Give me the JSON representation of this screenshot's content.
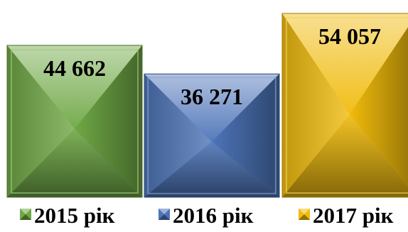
{
  "chart_data": {
    "type": "bar",
    "categories": [
      "2015 рік",
      "2016 рік",
      "2017 рік"
    ],
    "values": [
      44662,
      36271,
      54057
    ],
    "value_labels": [
      "44 662",
      "36 271",
      "54 057"
    ],
    "colors": [
      "#6fa845",
      "#4d74b8",
      "#f0bb0c"
    ],
    "ylim": [
      0,
      58000
    ],
    "grid": false,
    "legend": "bottom",
    "title": "",
    "xlabel": "",
    "ylabel": ""
  }
}
